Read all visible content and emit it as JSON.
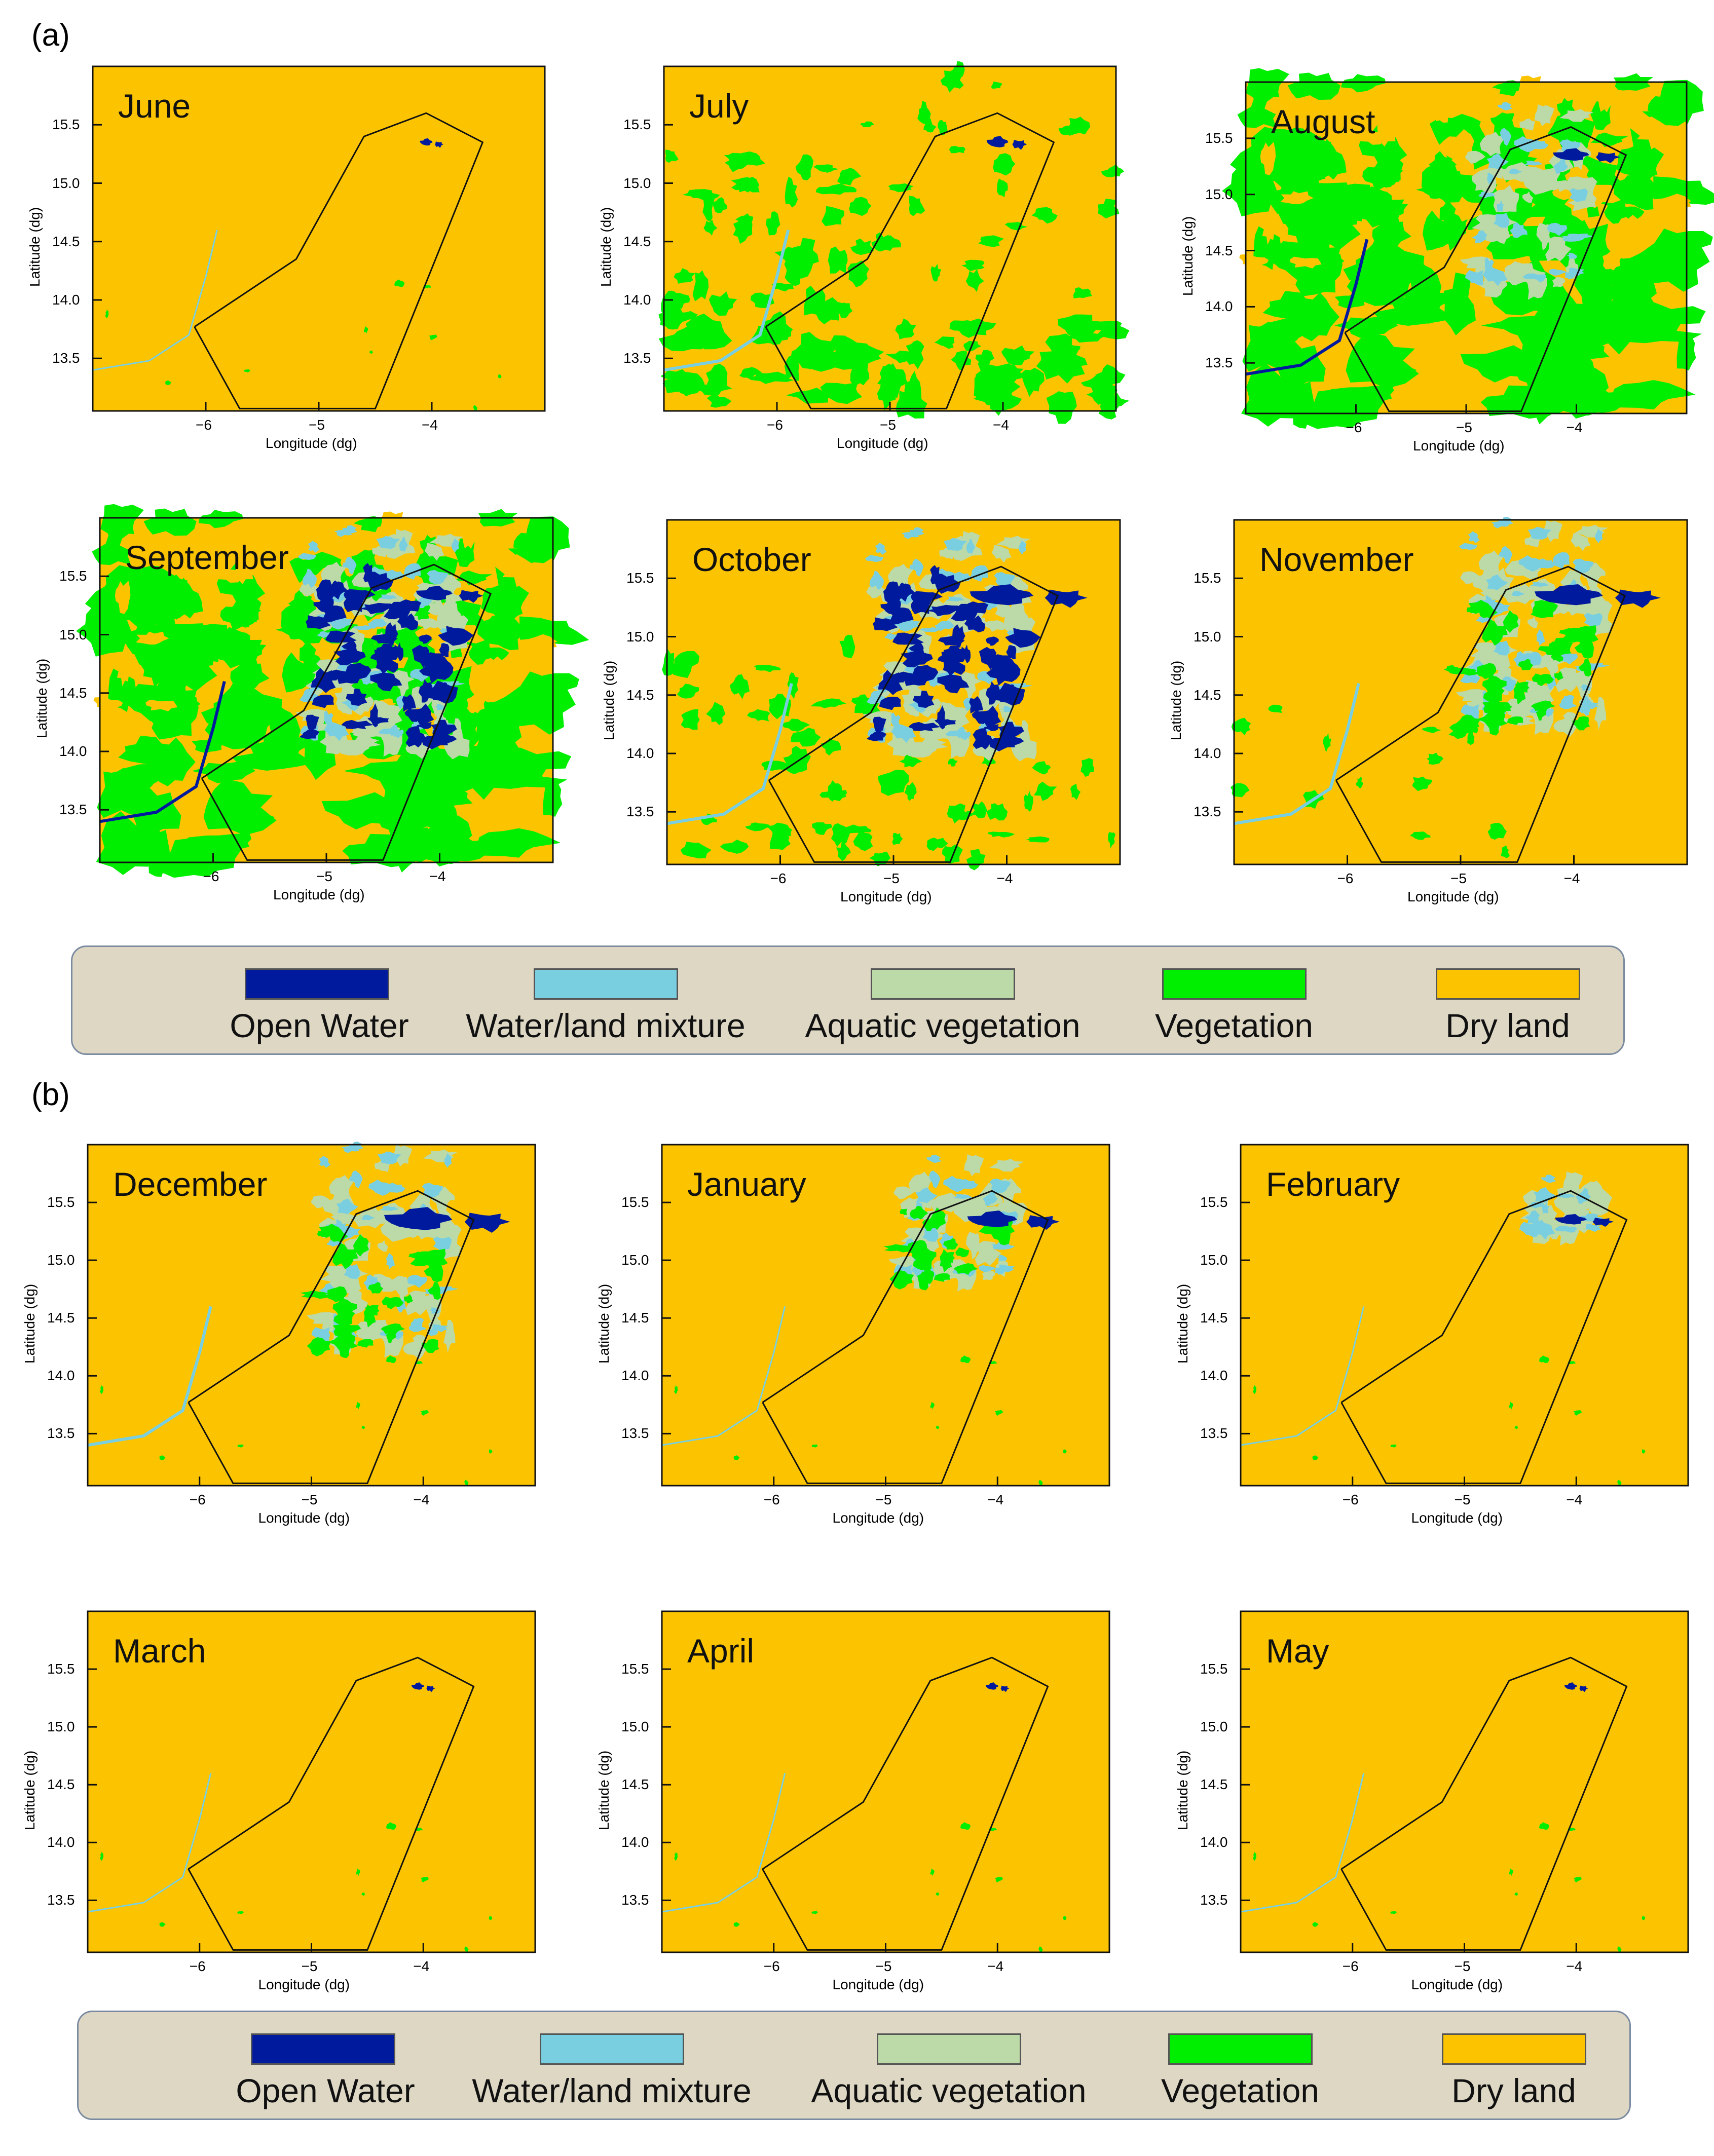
{
  "section_a_label": "(a)",
  "section_b_label": "(b)",
  "colors": {
    "open_water": "#001a9e",
    "water_land_mixture": "#79cfe0",
    "aquatic_vegetation": "#bcd9a8",
    "vegetation": "#00ee00",
    "dry_land": "#fcc400"
  },
  "axes": {
    "xlabel": "Longitude (dg)",
    "ylabel": "Latitude (dg)",
    "xticks": [
      "−6",
      "−5",
      "−4"
    ],
    "yticks": [
      "15.5",
      "15.0",
      "14.5",
      "14.0",
      "13.5"
    ]
  },
  "legend": {
    "items": [
      {
        "label": "Open Water",
        "color": "#001a9e"
      },
      {
        "label": "Water/land mixture",
        "color": "#79cfe0"
      },
      {
        "label": "Aquatic vegetation",
        "color": "#bcd9a8"
      },
      {
        "label": "Vegetation",
        "color": "#00ee00"
      },
      {
        "label": "Dry land",
        "color": "#fcc400"
      }
    ]
  },
  "months_a": [
    "June",
    "July",
    "August",
    "September",
    "October",
    "November"
  ],
  "months_b": [
    "December",
    "January",
    "February",
    "March",
    "April",
    "May"
  ]
}
